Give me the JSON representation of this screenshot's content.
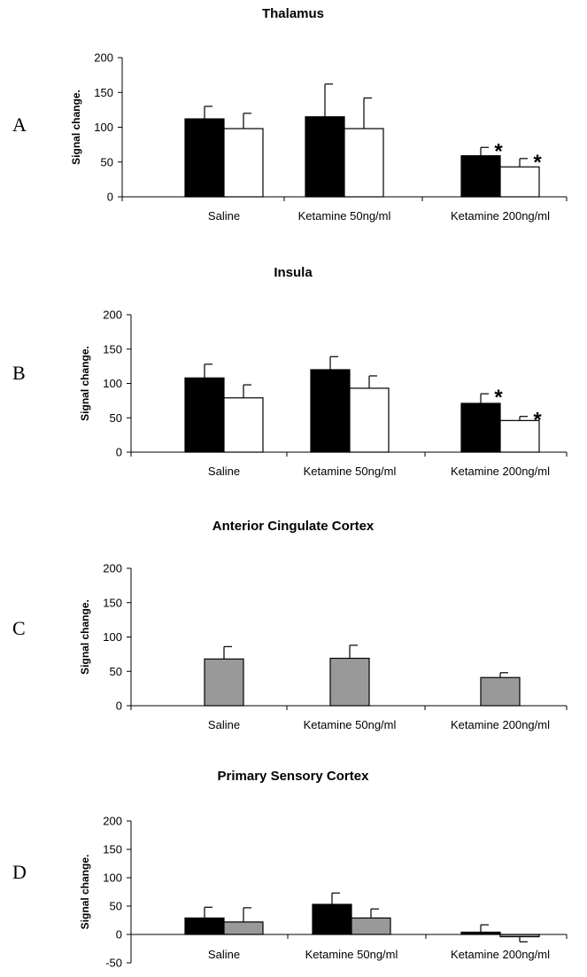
{
  "colors": {
    "series_black": "#000000",
    "series_white": "#ffffff",
    "series_gray": "#999999",
    "axis": "#000000"
  },
  "chart_data": [
    {
      "type": "bar",
      "panel": "A",
      "title": "Thalamus",
      "ylabel": "Signal change.",
      "xlabel": "",
      "ylim": [
        0,
        200
      ],
      "yticks": [
        0,
        50,
        100,
        150,
        200
      ],
      "grid": false,
      "categories": [
        "Saline",
        "Ketamine 50ng/ml",
        "Ketamine 200ng/ml"
      ],
      "series": [
        {
          "color": "#000000",
          "values": [
            112,
            115,
            59
          ],
          "errors": [
            18,
            47,
            12
          ],
          "significant": [
            false,
            false,
            true
          ]
        },
        {
          "color": "#ffffff",
          "values": [
            98,
            98,
            43
          ],
          "errors": [
            22,
            44,
            12
          ],
          "significant": [
            false,
            false,
            true
          ]
        }
      ],
      "annotation_text": "*"
    },
    {
      "type": "bar",
      "panel": "B",
      "title": "Insula",
      "ylabel": "Signal change.",
      "xlabel": "",
      "ylim": [
        0,
        200
      ],
      "yticks": [
        0,
        50,
        100,
        150,
        200
      ],
      "grid": false,
      "categories": [
        "Saline",
        "Ketamine 50ng/ml",
        "Ketamine 200ng/ml"
      ],
      "series": [
        {
          "color": "#000000",
          "values": [
            108,
            120,
            71
          ],
          "errors": [
            20,
            19,
            14
          ],
          "significant": [
            false,
            false,
            true
          ]
        },
        {
          "color": "#ffffff",
          "values": [
            79,
            93,
            46
          ],
          "errors": [
            19,
            18,
            6
          ],
          "significant": [
            false,
            false,
            true
          ]
        }
      ],
      "annotation_text": "*"
    },
    {
      "type": "bar",
      "panel": "C",
      "title": "Anterior Cingulate Cortex",
      "ylabel": "Signal change.",
      "xlabel": "",
      "ylim": [
        0,
        200
      ],
      "yticks": [
        0,
        50,
        100,
        150,
        200
      ],
      "grid": false,
      "categories": [
        "Saline",
        "Ketamine 50ng/ml",
        "Ketamine 200ng/ml"
      ],
      "series": [
        {
          "color": "#999999",
          "values": [
            68,
            69,
            41
          ],
          "errors": [
            18,
            19,
            7
          ],
          "significant": [
            false,
            false,
            false
          ]
        }
      ],
      "annotation_text": "*"
    },
    {
      "type": "bar",
      "panel": "D",
      "title": "Primary Sensory Cortex",
      "ylabel": "Signal change.",
      "xlabel": "",
      "ylim": [
        -50,
        200
      ],
      "yticks": [
        -50,
        0,
        50,
        100,
        150,
        200
      ],
      "grid": false,
      "categories": [
        "Saline",
        "Ketamine 50ng/ml",
        "Ketamine 200ng/ml"
      ],
      "series": [
        {
          "color": "#000000",
          "values": [
            29,
            53,
            4
          ],
          "errors": [
            19,
            20,
            13
          ],
          "significant": [
            false,
            false,
            false
          ]
        },
        {
          "color": "#999999",
          "values": [
            22,
            29,
            -4
          ],
          "errors": [
            25,
            16,
            9
          ],
          "significant": [
            false,
            false,
            false
          ]
        }
      ],
      "annotation_text": "*"
    }
  ]
}
